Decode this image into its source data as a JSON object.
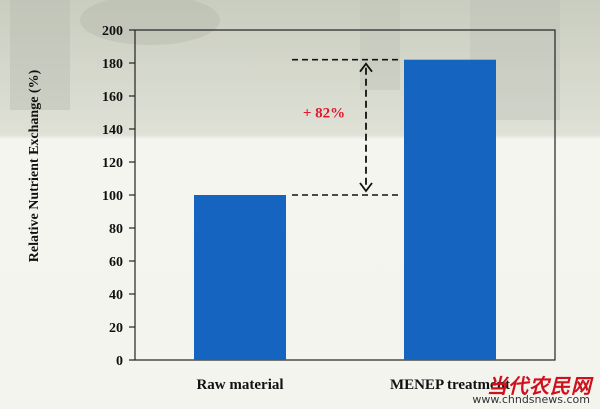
{
  "chart_data": {
    "type": "bar",
    "categories": [
      "Raw material",
      "MENEP treatment"
    ],
    "values": [
      100,
      182
    ],
    "ylabel": "Relative Nutrient Exchange (%)",
    "ylim": [
      0,
      200
    ],
    "yticks": [
      0,
      20,
      40,
      60,
      80,
      100,
      120,
      140,
      160,
      180,
      200
    ],
    "bar_color": "#1565c0",
    "grid": false,
    "annotation": {
      "text": "+ 82%",
      "from": 100,
      "to": 182,
      "color": "#e0182d"
    }
  },
  "watermark": {
    "logo_text": "当代农民网",
    "url": "www.chndsnews.com"
  }
}
